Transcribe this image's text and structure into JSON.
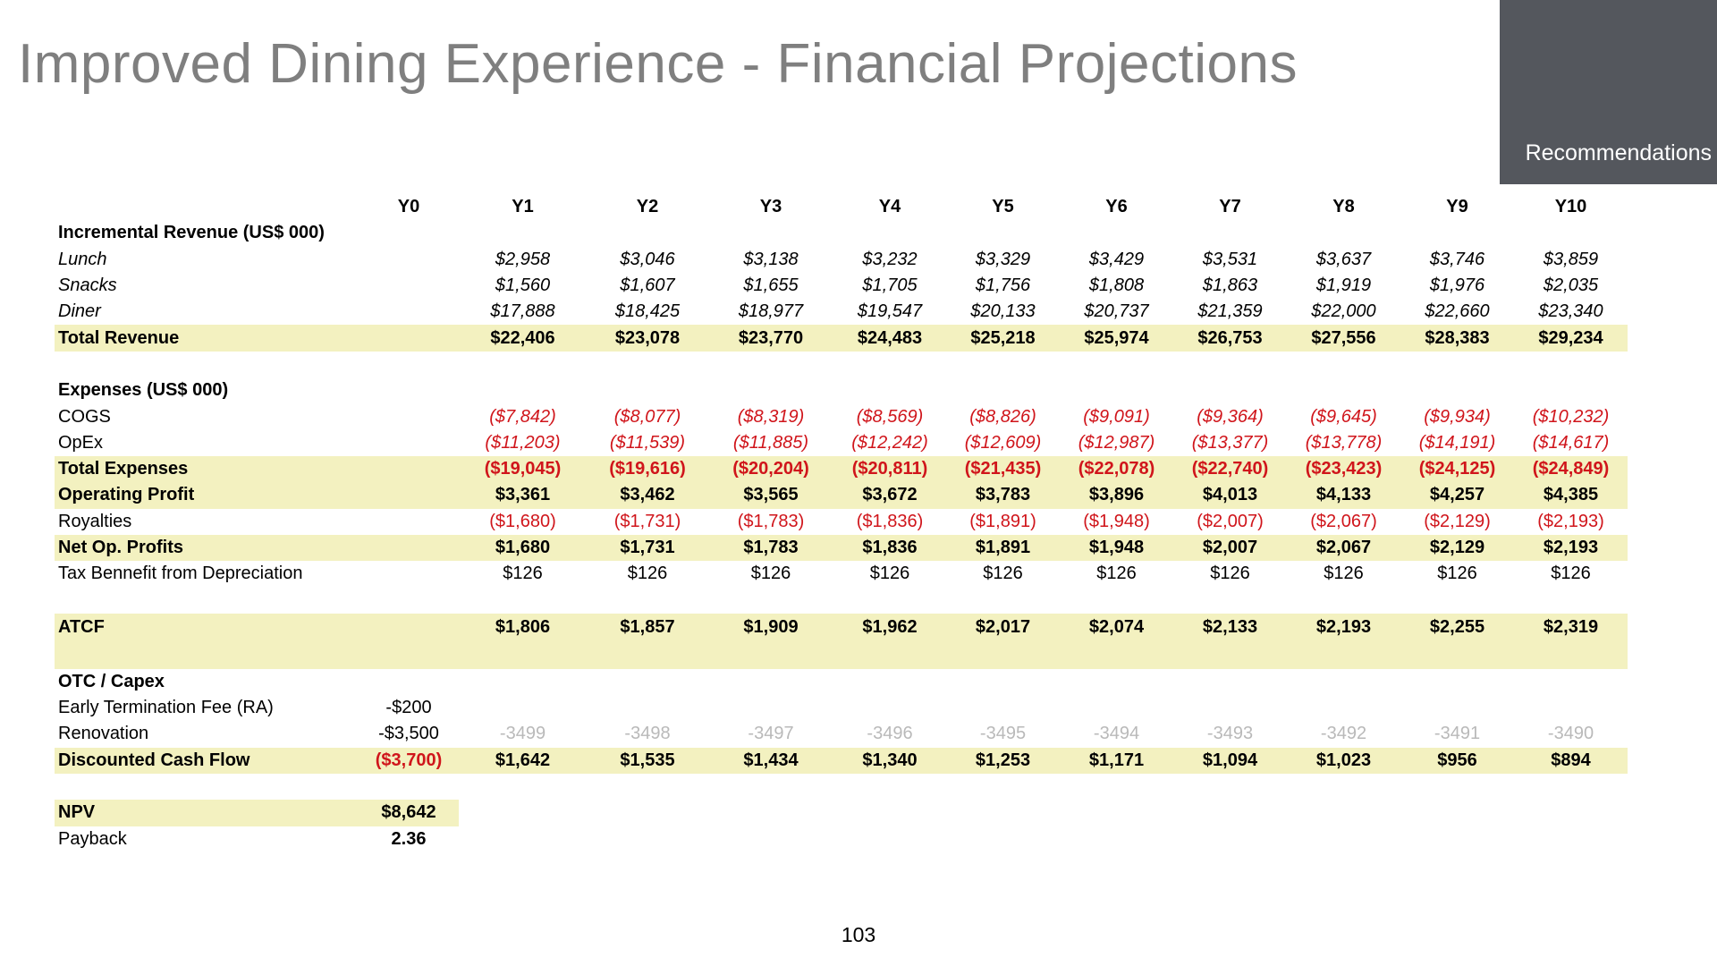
{
  "slide": {
    "title": "Improved Dining Experience - Financial Projections",
    "section": "Recommendations",
    "page_number": "103"
  },
  "table": {
    "headers": [
      "Y0",
      "Y1",
      "Y2",
      "Y3",
      "Y4",
      "Y5",
      "Y6",
      "Y7",
      "Y8",
      "Y9",
      "Y10"
    ],
    "rows": [
      {
        "label": "Incremental Revenue (US$ 000)",
        "style": "bold",
        "values": [
          "",
          "",
          "",
          "",
          "",
          "",
          "",
          "",
          "",
          "",
          ""
        ]
      },
      {
        "label": "Lunch",
        "style": "ital",
        "values": [
          "",
          "$2,958",
          "$3,046",
          "$3,138",
          "$3,232",
          "$3,329",
          "$3,429",
          "$3,531",
          "$3,637",
          "$3,746",
          "$3,859"
        ]
      },
      {
        "label": "Snacks",
        "style": "ital",
        "values": [
          "",
          "$1,560",
          "$1,607",
          "$1,655",
          "$1,705",
          "$1,756",
          "$1,808",
          "$1,863",
          "$1,919",
          "$1,976",
          "$2,035"
        ]
      },
      {
        "label": "Diner",
        "style": "ital",
        "values": [
          "",
          "$17,888",
          "$18,425",
          "$18,977",
          "$19,547",
          "$20,133",
          "$20,737",
          "$21,359",
          "$22,000",
          "$22,660",
          "$23,340"
        ]
      },
      {
        "label": "Total Revenue",
        "style": "hl bold",
        "values": [
          "",
          "$22,406",
          "$23,078",
          "$23,770",
          "$24,483",
          "$25,218",
          "$25,974",
          "$26,753",
          "$27,556",
          "$28,383",
          "$29,234"
        ]
      },
      {
        "label": "",
        "style": "",
        "values": [
          "",
          "",
          "",
          "",
          "",
          "",
          "",
          "",
          "",
          "",
          ""
        ]
      },
      {
        "label": "Expenses (US$ 000)",
        "style": "bold",
        "values": [
          "",
          "",
          "",
          "",
          "",
          "",
          "",
          "",
          "",
          "",
          ""
        ]
      },
      {
        "label": "COGS",
        "style": "ital-vals neg",
        "values": [
          "",
          "($7,842)",
          "($8,077)",
          "($8,319)",
          "($8,569)",
          "($8,826)",
          "($9,091)",
          "($9,364)",
          "($9,645)",
          "($9,934)",
          "($10,232)"
        ]
      },
      {
        "label": "OpEx",
        "style": "ital-vals neg",
        "values": [
          "",
          "($11,203)",
          "($11,539)",
          "($11,885)",
          "($12,242)",
          "($12,609)",
          "($12,987)",
          "($13,377)",
          "($13,778)",
          "($14,191)",
          "($14,617)"
        ]
      },
      {
        "label": "Total Expenses",
        "style": "hl bold neg",
        "values": [
          "",
          "($19,045)",
          "($19,616)",
          "($20,204)",
          "($20,811)",
          "($21,435)",
          "($22,078)",
          "($22,740)",
          "($23,423)",
          "($24,125)",
          "($24,849)"
        ]
      },
      {
        "label": "Operating Profit",
        "style": "hl bold",
        "values": [
          "",
          "$3,361",
          "$3,462",
          "$3,565",
          "$3,672",
          "$3,783",
          "$3,896",
          "$4,013",
          "$4,133",
          "$4,257",
          "$4,385"
        ]
      },
      {
        "label": "Royalties",
        "style": "neg",
        "values": [
          "",
          "($1,680)",
          "($1,731)",
          "($1,783)",
          "($1,836)",
          "($1,891)",
          "($1,948)",
          "($2,007)",
          "($2,067)",
          "($2,129)",
          "($2,193)"
        ]
      },
      {
        "label": "Net Op. Profits",
        "style": "hl bold",
        "values": [
          "",
          "$1,680",
          "$1,731",
          "$1,783",
          "$1,836",
          "$1,891",
          "$1,948",
          "$2,007",
          "$2,067",
          "$2,129",
          "$2,193"
        ]
      },
      {
        "label": "Tax Bennefit from Depreciation",
        "style": "",
        "values": [
          "",
          "$126",
          "$126",
          "$126",
          "$126",
          "$126",
          "$126",
          "$126",
          "$126",
          "$126",
          "$126"
        ]
      },
      {
        "label": "",
        "style": "",
        "values": [
          "",
          "",
          "",
          "",
          "",
          "",
          "",
          "",
          "",
          "",
          ""
        ]
      },
      {
        "label": "ATCF",
        "style": "hl bold tall",
        "values": [
          "",
          "$1,806",
          "$1,857",
          "$1,909",
          "$1,962",
          "$2,017",
          "$2,074",
          "$2,133",
          "$2,193",
          "$2,255",
          "$2,319"
        ]
      },
      {
        "label": "OTC / Capex",
        "style": "bold",
        "values": [
          "",
          "",
          "",
          "",
          "",
          "",
          "",
          "",
          "",
          "",
          ""
        ]
      },
      {
        "label": "Early Termination Fee (RA)",
        "style": "",
        "values": [
          "-$200",
          "",
          "",
          "",
          "",
          "",
          "",
          "",
          "",
          "",
          ""
        ]
      },
      {
        "label": "Renovation",
        "style": "ghost",
        "values": [
          "-$3,500",
          "-3499",
          "-3498",
          "-3497",
          "-3496",
          "-3495",
          "-3494",
          "-3493",
          "-3492",
          "-3491",
          "-3490"
        ]
      },
      {
        "label": "Discounted Cash Flow",
        "style": "hl bold",
        "values": [
          "($3,700)",
          "$1,642",
          "$1,535",
          "$1,434",
          "$1,340",
          "$1,253",
          "$1,171",
          "$1,094",
          "$1,023",
          "$956",
          "$894"
        ]
      },
      {
        "label": "",
        "style": "",
        "values": [
          "",
          "",
          "",
          "",
          "",
          "",
          "",
          "",
          "",
          "",
          ""
        ]
      },
      {
        "label": "NPV",
        "style": "npv",
        "values": [
          "$8,642",
          "",
          "",
          "",
          "",
          "",
          "",
          "",
          "",
          "",
          ""
        ]
      },
      {
        "label": "Payback",
        "style": "payback",
        "values": [
          "2.36",
          "",
          "",
          "",
          "",
          "",
          "",
          "",
          "",
          "",
          ""
        ]
      }
    ]
  }
}
